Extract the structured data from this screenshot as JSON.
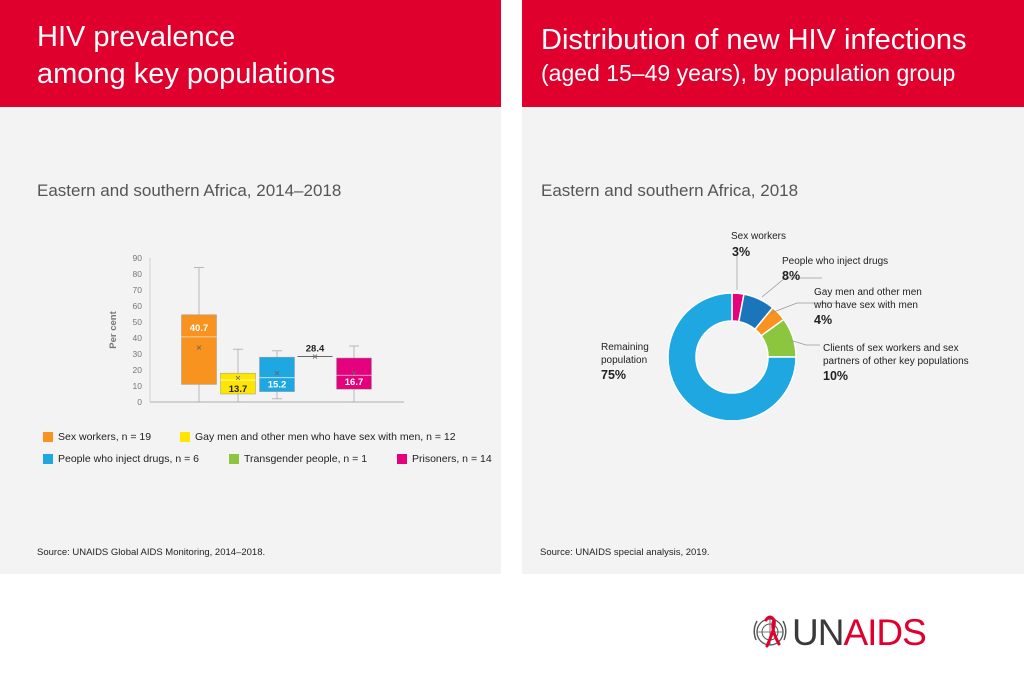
{
  "left_panel": {
    "banner": {
      "line1": "HIV prevalence",
      "line2": "among key populations"
    },
    "subtitle": "Eastern and southern Africa, 2014–2018",
    "source": "Source: UNAIDS Global AIDS Monitoring, 2014–2018.",
    "legend": [
      {
        "label": "Sex workers, n = 19",
        "color": "#f7931e"
      },
      {
        "label": "Gay men and other men who have sex with men, n = 12",
        "color": "#ffe600"
      },
      {
        "label": "People who inject drugs, n = 6",
        "color": "#1ea7e1"
      },
      {
        "label": "Transgender people, n = 1",
        "color": "#8cc63f"
      },
      {
        "label": "Prisoners, n = 14",
        "color": "#e5007e"
      }
    ]
  },
  "right_panel": {
    "banner": {
      "line1": "Distribution of new HIV infections",
      "line2": "(aged 15–49 years), by population group"
    },
    "subtitle": "Eastern and southern Africa, 2018",
    "source": "Source: UNAIDS special analysis, 2019."
  },
  "chart_data": [
    {
      "type": "boxplot",
      "title": "",
      "ylabel": "Per cent",
      "ylim": [
        0,
        90
      ],
      "yticks": [
        "0",
        "10",
        "20",
        "30",
        "40",
        "50",
        "60",
        "70",
        "80",
        "90"
      ],
      "series": [
        {
          "name": "Sex workers",
          "color": "#f7931e",
          "min": 0,
          "q1": 11,
          "median": 40.7,
          "q3": 54.5,
          "max": 84,
          "mean": 34,
          "label": "40.7",
          "label_color": "#ffffff"
        },
        {
          "name": "Gay men and other men who have sex with men",
          "color": "#ffe600",
          "min": 0,
          "q1": 5,
          "median": 13.7,
          "q3": 18,
          "max": 33,
          "mean": 15,
          "label": "13.7",
          "label_color": "#222222"
        },
        {
          "name": "People who inject drugs",
          "color": "#1ea7e1",
          "min": 2,
          "q1": 6.5,
          "median": 15.2,
          "q3": 28,
          "max": 32,
          "mean": 18,
          "label": "15.2",
          "label_color": "#ffffff"
        },
        {
          "name": "Transgender people",
          "color": "#8cc63f",
          "min": 28.4,
          "q1": 28.4,
          "median": 28.4,
          "q3": 28.4,
          "max": 28.4,
          "mean": 28.4,
          "label": "28.4",
          "label_color": "#222222"
        },
        {
          "name": "Prisoners",
          "color": "#e5007e",
          "min": 0,
          "q1": 8,
          "median": 16.7,
          "q3": 27.5,
          "max": 35,
          "mean": 18,
          "label": "16.7",
          "label_color": "#ffffff"
        }
      ]
    },
    {
      "type": "donut",
      "title": "",
      "slices": [
        {
          "name": "Sex workers",
          "value": 3,
          "color": "#e5007e",
          "label": "Sex workers",
          "pct": "3%"
        },
        {
          "name": "People who inject drugs",
          "value": 8,
          "color": "#1b75bb",
          "label": "People who inject drugs",
          "pct": "8%"
        },
        {
          "name": "Gay men and other men who have sex with men",
          "value": 4,
          "color": "#f7931e",
          "label1": "Gay men and other men",
          "label2": "who have sex  with men",
          "pct": "4%"
        },
        {
          "name": "Clients of sex workers and sex partners of other key populations",
          "value": 10,
          "color": "#8cc63f",
          "label1": "Clients of sex workers and sex",
          "label2": "partners of other key populations",
          "pct": "10%"
        },
        {
          "name": "Remaining population",
          "value": 75,
          "color": "#1ea7e1",
          "label1": "Remaining",
          "label2": "population",
          "pct": "75%"
        }
      ]
    }
  ],
  "logo": {
    "part1": "UN",
    "part2": "AIDS",
    "text": "UNAIDS"
  }
}
